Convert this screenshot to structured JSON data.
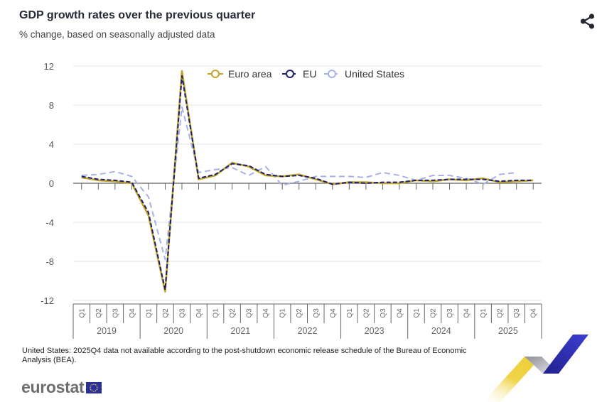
{
  "header": {
    "title": "GDP growth rates over the previous quarter",
    "subtitle": "% change, based on seasonally adjusted data",
    "share_icon": "share-icon"
  },
  "footnote": "United States: 2025Q4 data not available according to the post-shutdown economic release schedule of the Bureau of Economic Analysis (BEA).",
  "logo": {
    "text": "eurostat",
    "flag_icon": "eu-flag-icon"
  },
  "chart_data": {
    "type": "line",
    "title": "GDP growth rates over the previous quarter",
    "subtitle": "% change, based on seasonally adjusted data",
    "xlabel": "",
    "ylabel": "",
    "ylim": [
      -12,
      12
    ],
    "yticks": [
      "12",
      "8",
      "4",
      "0",
      "-4",
      "-8",
      "-12"
    ],
    "ytick_values": [
      12,
      8,
      4,
      0,
      -4,
      -8,
      -12
    ],
    "grid": true,
    "legend_position": "top-center",
    "years": [
      "2019",
      "2020",
      "2021",
      "2022",
      "2023",
      "2024",
      "2025"
    ],
    "quarters": [
      "Q1",
      "Q2",
      "Q3",
      "Q4"
    ],
    "x": [
      "2019Q1",
      "2019Q2",
      "2019Q3",
      "2019Q4",
      "2020Q1",
      "2020Q2",
      "2020Q3",
      "2020Q4",
      "2021Q1",
      "2021Q2",
      "2021Q3",
      "2021Q4",
      "2022Q1",
      "2022Q2",
      "2022Q3",
      "2022Q4",
      "2023Q1",
      "2023Q2",
      "2023Q3",
      "2023Q4",
      "2024Q1",
      "2024Q2",
      "2024Q3",
      "2024Q4",
      "2025Q1",
      "2025Q2",
      "2025Q3",
      "2025Q4"
    ],
    "series": [
      {
        "name": "Euro area",
        "color": "#c2a42a",
        "style": "solid",
        "values": [
          0.6,
          0.3,
          0.2,
          0.0,
          -3.3,
          -11.1,
          11.5,
          0.4,
          0.8,
          2.1,
          1.7,
          0.8,
          0.7,
          0.9,
          0.4,
          -0.1,
          0.1,
          0.1,
          0.0,
          0.0,
          0.3,
          0.2,
          0.4,
          0.3,
          0.5,
          0.1,
          0.2,
          0.3
        ]
      },
      {
        "name": "EU",
        "color": "#1c1f6b",
        "style": "dashed",
        "values": [
          0.7,
          0.4,
          0.3,
          0.1,
          -3.0,
          -10.9,
          11.0,
          0.5,
          0.9,
          2.0,
          1.8,
          0.9,
          0.7,
          0.8,
          0.5,
          -0.1,
          0.1,
          0.0,
          0.1,
          0.1,
          0.3,
          0.3,
          0.4,
          0.4,
          0.4,
          0.2,
          0.3,
          0.3
        ]
      },
      {
        "name": "United States",
        "color": "#a8b1e6",
        "style": "dashed",
        "values": [
          0.8,
          0.9,
          1.2,
          0.7,
          -1.4,
          -7.8,
          7.8,
          1.1,
          1.4,
          1.6,
          0.8,
          1.7,
          -0.2,
          0.2,
          0.7,
          0.7,
          0.7,
          0.6,
          1.1,
          0.8,
          0.3,
          0.8,
          0.8,
          0.5,
          -0.1,
          0.9,
          1.1,
          null
        ]
      }
    ]
  }
}
